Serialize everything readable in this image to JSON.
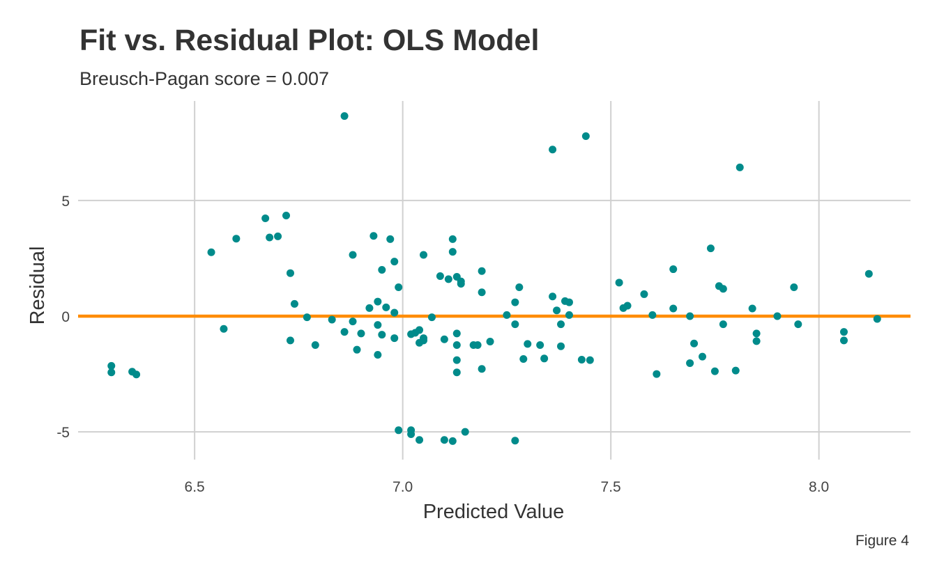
{
  "chart_data": {
    "type": "scatter",
    "title": "Fit vs. Residual Plot: OLS Model",
    "subtitle": "Breusch-Pagan score = 0.007",
    "xlabel": "Predicted Value",
    "ylabel": "Residual",
    "caption": "Figure 4",
    "xlim": [
      6.22,
      8.22
    ],
    "ylim": [
      -6.2,
      9.3
    ],
    "xticks": [
      6.5,
      7.0,
      7.5,
      8.0
    ],
    "xtick_labels": [
      "6.5",
      "7.0",
      "7.5",
      "8.0"
    ],
    "yticks": [
      -5,
      0,
      5
    ],
    "ytick_labels": [
      "-5",
      "0",
      "5"
    ],
    "grid": true,
    "reference_line": {
      "y": 0,
      "color": "#FF8C00"
    },
    "point_color": "#008B8B",
    "points": [
      [
        6.3,
        -2.15
      ],
      [
        6.3,
        -2.43
      ],
      [
        6.35,
        -2.4
      ],
      [
        6.36,
        -2.52
      ],
      [
        6.54,
        2.76
      ],
      [
        6.57,
        -0.55
      ],
      [
        6.6,
        3.35
      ],
      [
        6.67,
        4.23
      ],
      [
        6.68,
        3.4
      ],
      [
        6.7,
        3.45
      ],
      [
        6.72,
        4.35
      ],
      [
        6.73,
        1.86
      ],
      [
        6.73,
        -1.05
      ],
      [
        6.74,
        0.53
      ],
      [
        6.77,
        -0.05
      ],
      [
        6.79,
        -1.25
      ],
      [
        6.83,
        -0.15
      ],
      [
        6.86,
        8.65
      ],
      [
        6.86,
        -0.68
      ],
      [
        6.88,
        2.65
      ],
      [
        6.88,
        -0.23
      ],
      [
        6.89,
        -1.45
      ],
      [
        6.9,
        -0.75
      ],
      [
        6.92,
        0.35
      ],
      [
        6.93,
        3.47
      ],
      [
        6.94,
        -0.38
      ],
      [
        6.94,
        0.63
      ],
      [
        6.94,
        -1.67
      ],
      [
        6.95,
        -0.8
      ],
      [
        6.95,
        2.0
      ],
      [
        6.96,
        0.38
      ],
      [
        6.97,
        3.33
      ],
      [
        6.98,
        2.36
      ],
      [
        6.98,
        0.15
      ],
      [
        6.98,
        -0.95
      ],
      [
        6.99,
        1.25
      ],
      [
        6.99,
        -4.93
      ],
      [
        7.02,
        -4.93
      ],
      [
        7.02,
        -5.1
      ],
      [
        7.02,
        -0.78
      ],
      [
        7.03,
        -0.72
      ],
      [
        7.04,
        -0.6
      ],
      [
        7.04,
        -1.15
      ],
      [
        7.04,
        -5.35
      ],
      [
        7.05,
        -1.05
      ],
      [
        7.05,
        -0.95
      ],
      [
        7.05,
        2.65
      ],
      [
        7.07,
        -0.05
      ],
      [
        7.09,
        1.73
      ],
      [
        7.1,
        -1.0
      ],
      [
        7.1,
        -5.35
      ],
      [
        7.11,
        1.6
      ],
      [
        7.12,
        -5.4
      ],
      [
        7.12,
        3.33
      ],
      [
        7.12,
        2.78
      ],
      [
        7.13,
        -0.75
      ],
      [
        7.13,
        -1.25
      ],
      [
        7.13,
        -2.43
      ],
      [
        7.14,
        1.5
      ],
      [
        7.13,
        1.7
      ],
      [
        7.14,
        1.4
      ],
      [
        7.13,
        -1.9
      ],
      [
        7.15,
        -5.0
      ],
      [
        7.17,
        -1.25
      ],
      [
        7.18,
        -1.25
      ],
      [
        7.19,
        1.95
      ],
      [
        7.19,
        1.03
      ],
      [
        7.19,
        -2.28
      ],
      [
        7.21,
        -1.1
      ],
      [
        7.25,
        0.05
      ],
      [
        7.27,
        0.6
      ],
      [
        7.27,
        -0.35
      ],
      [
        7.27,
        -5.38
      ],
      [
        7.28,
        1.25
      ],
      [
        7.29,
        -1.85
      ],
      [
        7.3,
        -1.2
      ],
      [
        7.33,
        -1.25
      ],
      [
        7.34,
        -1.83
      ],
      [
        7.36,
        0.85
      ],
      [
        7.36,
        7.2
      ],
      [
        7.37,
        0.25
      ],
      [
        7.38,
        -0.35
      ],
      [
        7.38,
        -1.3
      ],
      [
        7.39,
        0.65
      ],
      [
        7.4,
        0.05
      ],
      [
        7.4,
        0.6
      ],
      [
        7.43,
        -1.88
      ],
      [
        7.44,
        7.78
      ],
      [
        7.45,
        -1.9
      ],
      [
        7.52,
        1.45
      ],
      [
        7.53,
        0.35
      ],
      [
        7.54,
        0.45
      ],
      [
        7.58,
        0.95
      ],
      [
        7.6,
        0.05
      ],
      [
        7.61,
        -2.5
      ],
      [
        7.65,
        0.33
      ],
      [
        7.65,
        2.03
      ],
      [
        7.69,
        0.0
      ],
      [
        7.69,
        -2.03
      ],
      [
        7.7,
        -1.18
      ],
      [
        7.72,
        -1.75
      ],
      [
        7.74,
        2.93
      ],
      [
        7.75,
        -2.38
      ],
      [
        7.76,
        1.3
      ],
      [
        7.77,
        1.18
      ],
      [
        7.77,
        -0.35
      ],
      [
        7.8,
        -2.35
      ],
      [
        7.81,
        6.43
      ],
      [
        7.84,
        0.33
      ],
      [
        7.85,
        -0.75
      ],
      [
        7.85,
        -1.08
      ],
      [
        7.9,
        0.0
      ],
      [
        7.94,
        1.25
      ],
      [
        7.95,
        -0.35
      ],
      [
        8.06,
        -0.68
      ],
      [
        8.06,
        -1.05
      ],
      [
        8.12,
        1.83
      ],
      [
        8.14,
        -0.12
      ]
    ]
  }
}
